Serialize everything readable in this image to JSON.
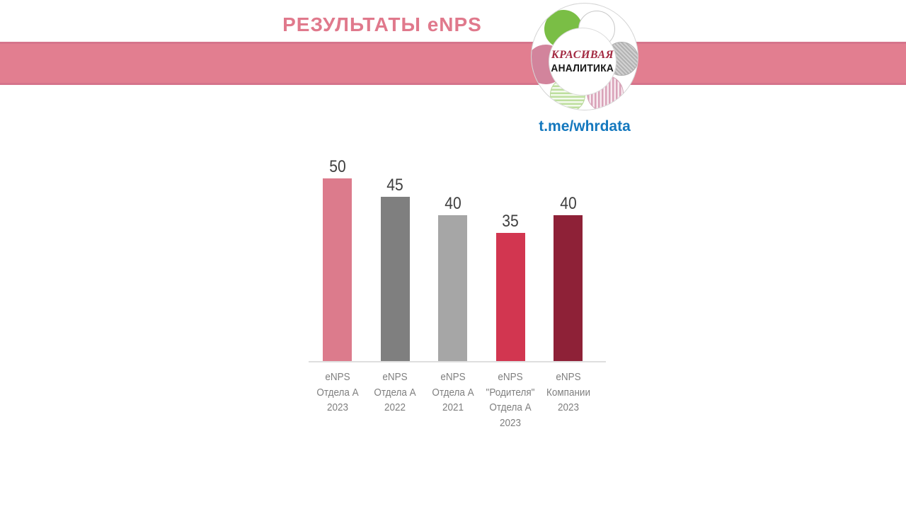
{
  "header": {
    "title": "РЕЗУЛЬТАТЫ eNPS",
    "telegram_link": "t.me/whrdata"
  },
  "logo": {
    "line1": "КРАСИВАЯ",
    "line2": "АНАЛИТИКА",
    "petals": [
      "green-solid",
      "white",
      "gray-crosshatch",
      "pink-striped",
      "green-striped",
      "pink-solid"
    ]
  },
  "colors": {
    "banner": "#e27e90",
    "banner_edge": "#d5748b",
    "title_text": "#e0798c",
    "link_text": "#1478be",
    "logo_green": "#7abe45",
    "logo_pink": "#d2849c",
    "value_label": "#3f3f3f",
    "category_label": "#7f7f7f",
    "baseline": "#dedede"
  },
  "chart_data": {
    "type": "bar",
    "title": "РЕЗУЛЬТАТЫ eNPS",
    "categories": [
      "eNPS\nОтдела А\n2023",
      "eNPS\nОтдела А\n2022",
      "eNPS\nОтдела А\n2021",
      "eNPS\n\"Родителя\"\nОтдела А\n2023",
      "eNPS\nКомпании\n2023"
    ],
    "values": [
      50,
      45,
      40,
      35,
      40
    ],
    "bar_colors": [
      "#dc7b8c",
      "#7f7f7f",
      "#a6a6a6",
      "#d23650",
      "#8e2137"
    ],
    "xlabel": "",
    "ylabel": "",
    "ylim": [
      0,
      50
    ],
    "grid": false,
    "data_labels": true,
    "legend_position": "none"
  }
}
